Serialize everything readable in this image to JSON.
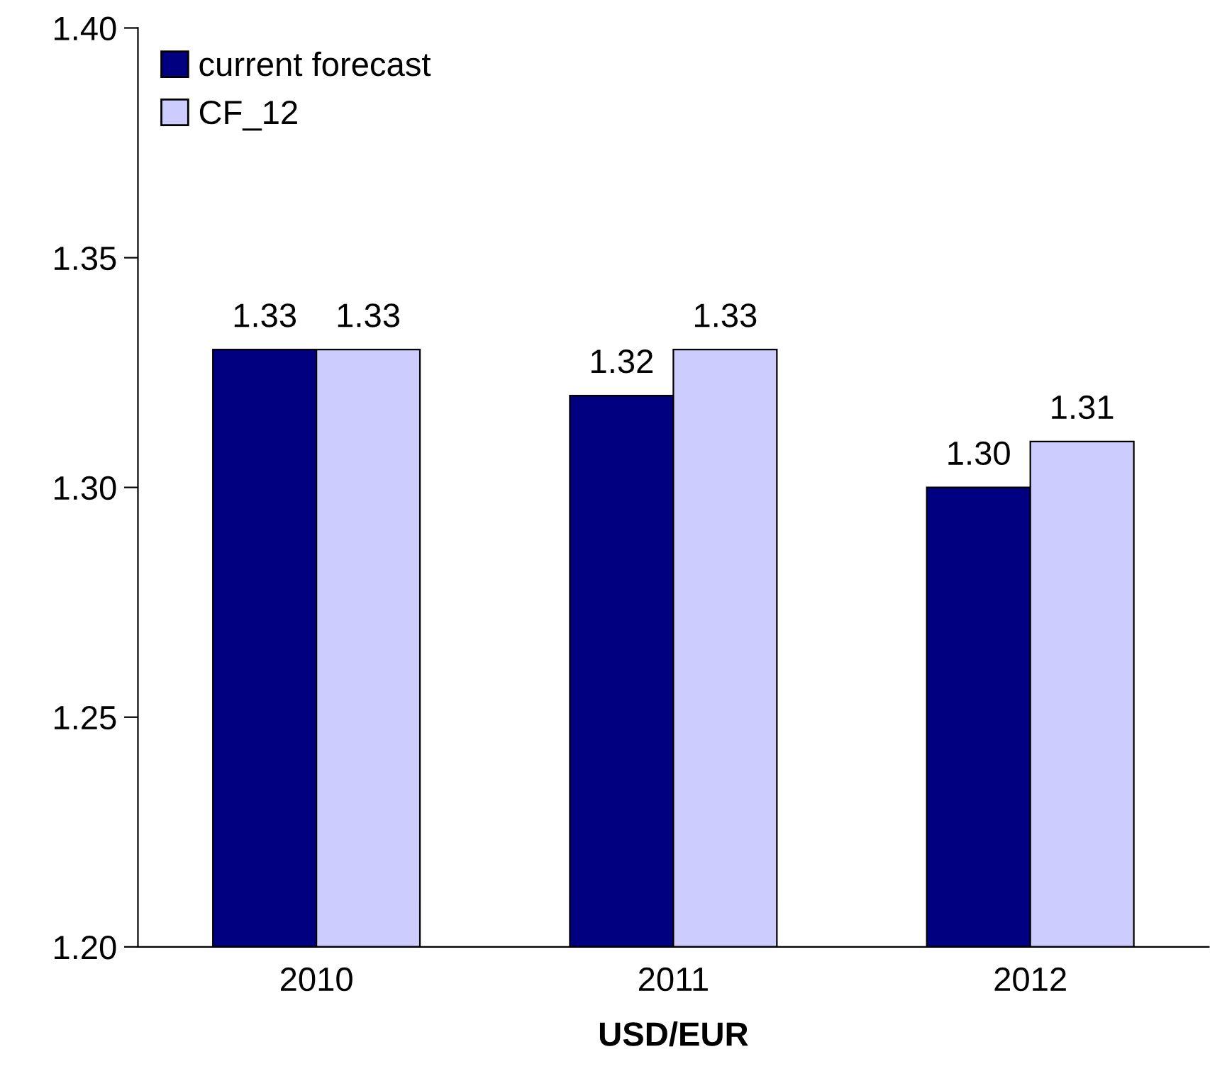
{
  "chart_data": {
    "type": "bar",
    "xlabel": "USD/EUR",
    "categories": [
      "2010",
      "2011",
      "2012"
    ],
    "series": [
      {
        "name": "current forecast",
        "color": "#000080",
        "values": [
          1.33,
          1.32,
          1.3
        ],
        "value_labels": [
          "1.33",
          "1.32",
          "1.30"
        ]
      },
      {
        "name": "CF_12",
        "color": "#ccccff",
        "values": [
          1.33,
          1.33,
          1.31
        ],
        "value_labels": [
          "1.33",
          "1.33",
          "1.31"
        ]
      }
    ],
    "ylim": [
      1.2,
      1.4
    ],
    "yticks": [
      {
        "value": 1.2,
        "label": "1.20"
      },
      {
        "value": 1.25,
        "label": "1.25"
      },
      {
        "value": 1.3,
        "label": "1.30"
      },
      {
        "value": 1.35,
        "label": "1.35"
      },
      {
        "value": 1.4,
        "label": "1.40"
      }
    ],
    "grid": false,
    "legend": "top left"
  }
}
